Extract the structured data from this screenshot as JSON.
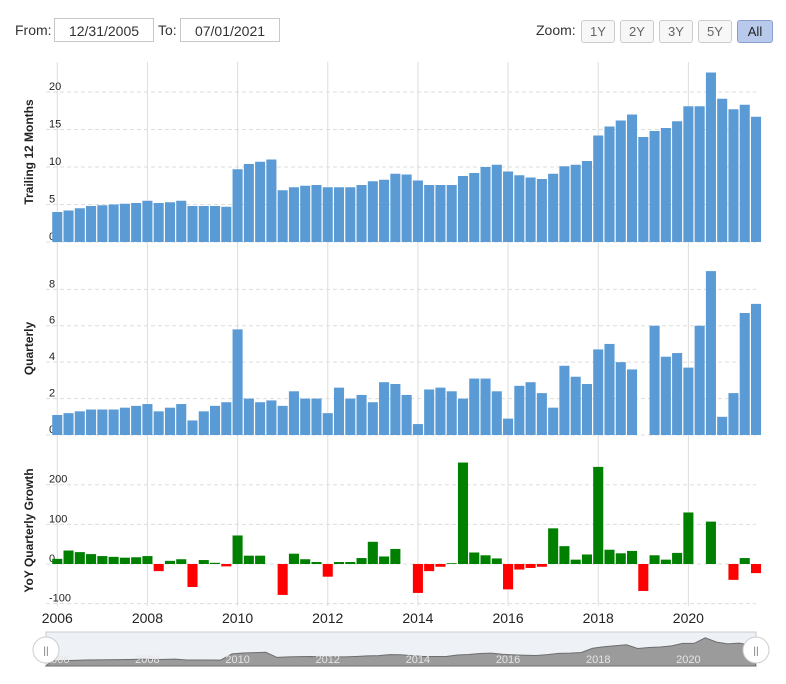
{
  "controls": {
    "from_label": "From:",
    "from_value": "12/31/2005",
    "to_label": "To:",
    "to_value": "07/01/2021",
    "zoom_label": "Zoom:",
    "zoom_buttons": [
      "1Y",
      "2Y",
      "3Y",
      "5Y",
      "All"
    ],
    "zoom_active": "All"
  },
  "colors": {
    "bar_blue": "#5b9bd5",
    "positive": "#008000",
    "negative": "#ff0000",
    "grid": "#dddddd",
    "navigator_fill": "#8c8c8c"
  },
  "chart_data": [
    {
      "type": "bar",
      "ylabel": "Trailing 12 Months",
      "ylim": [
        0,
        24
      ],
      "yticks": [
        0,
        5,
        10,
        15,
        20
      ],
      "x_start": 2006.0,
      "x_step": 0.25,
      "values": [
        4.0,
        4.2,
        4.5,
        4.8,
        4.9,
        5.0,
        5.1,
        5.2,
        5.5,
        5.2,
        5.3,
        5.5,
        4.8,
        4.8,
        4.8,
        4.7,
        9.7,
        10.4,
        10.7,
        11.0,
        6.9,
        7.3,
        7.5,
        7.6,
        7.3,
        7.3,
        7.3,
        7.6,
        8.1,
        8.3,
        9.1,
        9.0,
        8.2,
        7.6,
        7.6,
        7.6,
        8.8,
        9.2,
        10.0,
        10.3,
        9.4,
        8.9,
        8.6,
        8.4,
        9.1,
        10.1,
        10.3,
        10.8,
        14.2,
        15.4,
        16.2,
        17.0,
        14.0,
        14.8,
        15.2,
        16.1,
        18.1,
        18.1,
        22.6,
        19.1,
        17.7,
        18.3,
        16.7
      ]
    },
    {
      "type": "bar",
      "ylabel": "Quarterly",
      "ylim": [
        0,
        9.5
      ],
      "yticks": [
        0,
        2,
        4,
        6,
        8
      ],
      "x_start": 2006.0,
      "x_step": 0.25,
      "values": [
        1.1,
        1.2,
        1.3,
        1.4,
        1.4,
        1.4,
        1.5,
        1.6,
        1.7,
        1.3,
        1.5,
        1.7,
        0.8,
        1.3,
        1.6,
        1.8,
        5.8,
        2.0,
        1.8,
        1.9,
        1.6,
        2.4,
        2.0,
        2.0,
        1.2,
        2.6,
        2.0,
        2.2,
        1.8,
        2.9,
        2.8,
        2.2,
        0.6,
        2.5,
        2.6,
        2.4,
        2.0,
        3.1,
        3.1,
        2.4,
        0.9,
        2.7,
        2.9,
        2.3,
        1.5,
        3.8,
        3.2,
        2.8,
        4.7,
        5.0,
        4.0,
        3.6,
        0.0,
        6.0,
        4.3,
        4.5,
        3.7,
        6.0,
        9.0,
        1.0,
        2.3,
        6.7,
        7.2
      ]
    },
    {
      "type": "bar",
      "ylabel": "YoY Quarterly Growth",
      "ylim": [
        -110,
        275
      ],
      "yticks": [
        -100,
        0,
        100,
        200
      ],
      "x_start": 2006.0,
      "x_step": 0.25,
      "values": [
        13,
        34,
        30,
        25,
        20,
        18,
        16,
        17,
        20,
        -18,
        8,
        12,
        -58,
        10,
        3,
        -6,
        72,
        21,
        21,
        0,
        -78,
        26,
        12,
        5,
        -32,
        5,
        5,
        15,
        56,
        19,
        38,
        0,
        -73,
        -18,
        -7,
        2,
        256,
        29,
        22,
        14,
        -64,
        -14,
        -10,
        -7,
        90,
        45,
        11,
        24,
        245,
        36,
        27,
        33,
        -68,
        22,
        11,
        28,
        130,
        0,
        107,
        0,
        -40,
        15,
        -23
      ]
    }
  ],
  "x_axis": {
    "min": 2005.75,
    "max": 2021.5,
    "tick_labels": [
      "2006",
      "2008",
      "2010",
      "2012",
      "2014",
      "2016",
      "2018",
      "2020"
    ]
  },
  "navigator": {
    "labels": [
      "2006",
      "2008",
      "2010",
      "2012",
      "2014",
      "2016",
      "2018",
      "2020"
    ],
    "handle_glyph": "||"
  }
}
